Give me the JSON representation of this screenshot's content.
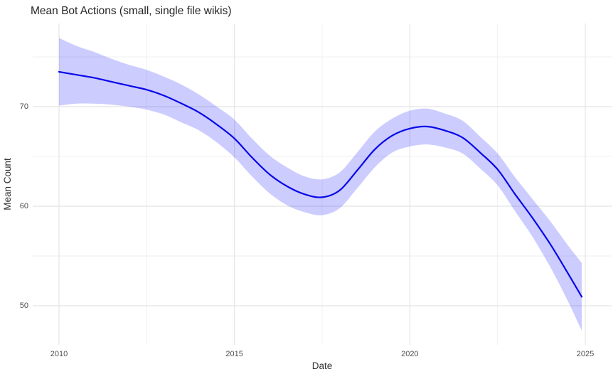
{
  "title": "Mean Bot Actions (small, single file wikis)",
  "chart_data": {
    "type": "line",
    "title": "Mean Bot Actions (small, single file wikis)",
    "xlabel": "Date",
    "ylabel": "Mean Count",
    "legend": "none",
    "grid": "major+minor",
    "smoothed": true,
    "x": [
      2010,
      2010.5,
      2011,
      2011.5,
      2012,
      2012.5,
      2013,
      2013.5,
      2014,
      2014.5,
      2015,
      2015.5,
      2016,
      2016.5,
      2017,
      2017.5,
      2018,
      2018.5,
      2019,
      2019.5,
      2020,
      2020.5,
      2021,
      2021.5,
      2022,
      2022.5,
      2023,
      2023.5,
      2024,
      2024.5,
      2024.9
    ],
    "series": [
      {
        "name": "mean_count",
        "values": [
          73.5,
          73.2,
          72.9,
          72.5,
          72.1,
          71.7,
          71.1,
          70.3,
          69.4,
          68.2,
          66.8,
          64.9,
          63.2,
          62.0,
          61.2,
          60.9,
          61.6,
          63.6,
          65.7,
          67.1,
          67.8,
          68.0,
          67.6,
          66.9,
          65.4,
          63.7,
          61.2,
          58.8,
          56.2,
          53.3,
          50.9
        ]
      },
      {
        "name": "ci_lower",
        "values": [
          70.1,
          70.3,
          70.3,
          70.2,
          70.0,
          69.7,
          69.2,
          68.4,
          67.6,
          66.4,
          64.9,
          63.0,
          61.3,
          60.1,
          59.4,
          59.1,
          59.8,
          61.8,
          63.9,
          65.4,
          66.0,
          66.2,
          65.9,
          65.3,
          63.8,
          62.1,
          59.5,
          56.9,
          53.9,
          50.5,
          47.5
        ]
      },
      {
        "name": "ci_upper",
        "values": [
          76.9,
          76.1,
          75.5,
          74.8,
          74.2,
          73.7,
          73.0,
          72.2,
          71.2,
          70.0,
          68.7,
          66.8,
          65.1,
          63.9,
          63.0,
          62.7,
          63.4,
          65.4,
          67.5,
          68.8,
          69.6,
          69.8,
          69.3,
          68.6,
          67.0,
          65.3,
          62.9,
          60.7,
          58.5,
          56.1,
          54.3
        ]
      }
    ],
    "x_major_ticks": [
      2010,
      2015,
      2020,
      2025
    ],
    "x_minor_ticks": [
      2012.5,
      2017.5,
      2022.5
    ],
    "y_major_ticks": [
      50,
      60,
      70
    ],
    "y_minor_ticks": [
      55,
      65,
      75
    ],
    "xlim": [
      2009.25,
      2025.7
    ],
    "ylim": [
      46.0,
      78.4
    ],
    "colors": {
      "line": "#0808e8",
      "ribbon": "rgba(0,0,255,0.2)",
      "grid_major": "#e4e4e4",
      "grid_minor": "#efefef",
      "tick_text": "#4d4d4d",
      "title_text": "#262626",
      "axis_title_text": "#303030",
      "background": "#ffffff"
    }
  }
}
